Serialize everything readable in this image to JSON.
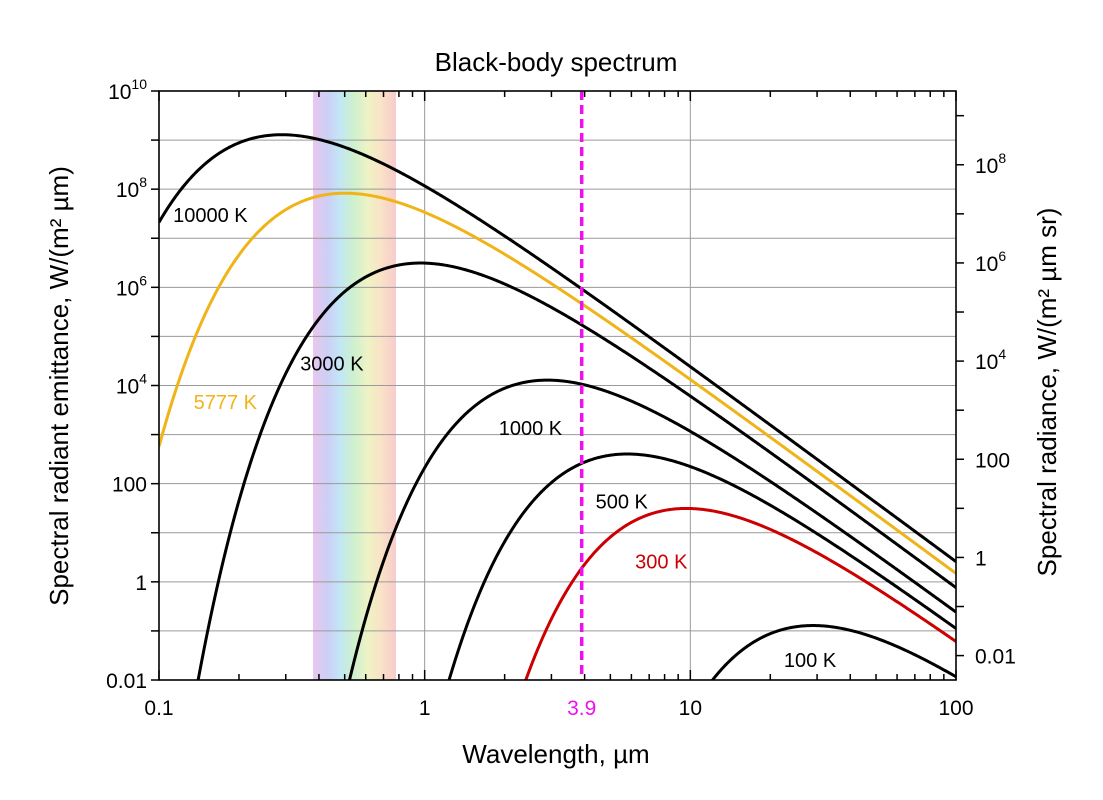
{
  "chart_data": {
    "type": "line",
    "title": "Black-body spectrum",
    "xlabel": "Wavelength, µm",
    "ylabel": "Spectral radiant emittance, W/(m² µm)",
    "y2label": "Spectral radiance, W/(m² µm sr)",
    "x_scale": "log",
    "y_scale": "log",
    "xlim": [
      0.1,
      100
    ],
    "ylim": [
      0.01,
      10000000000
    ],
    "grid": true,
    "legend": "none",
    "x_ticks": [
      {
        "value": 0.1,
        "label": "0.1"
      },
      {
        "value": 1,
        "label": "1"
      },
      {
        "value": 10,
        "label": "10"
      },
      {
        "value": 100,
        "label": "100"
      }
    ],
    "y_ticks": [
      {
        "value": 0.01,
        "label": "0.01"
      },
      {
        "value": 1,
        "label": "1"
      },
      {
        "value": 100,
        "label": "100"
      },
      {
        "value": 10000,
        "base": "10",
        "exp": "4"
      },
      {
        "value": 1000000,
        "base": "10",
        "exp": "6"
      },
      {
        "value": 100000000,
        "base": "10",
        "exp": "8"
      },
      {
        "value": 10000000000,
        "base": "10",
        "exp": "10"
      }
    ],
    "y2_ticks": [
      {
        "value": 0.01,
        "label": "0.01"
      },
      {
        "value": 1,
        "label": "1"
      },
      {
        "value": 100,
        "label": "100"
      },
      {
        "value": 10000,
        "base": "10",
        "exp": "4"
      },
      {
        "value": 1000000,
        "base": "10",
        "exp": "6"
      },
      {
        "value": 100000000,
        "base": "10",
        "exp": "8"
      }
    ],
    "y2_factor": 0.3183,
    "series": [
      {
        "name": "10000 K",
        "temperature": 10000,
        "color": "#000000"
      },
      {
        "name": "5777 K",
        "temperature": 5777,
        "color": "#f0b419"
      },
      {
        "name": "3000 K",
        "temperature": 3000,
        "color": "#000000"
      },
      {
        "name": "1000 K",
        "temperature": 1000,
        "color": "#000000"
      },
      {
        "name": "500 K",
        "temperature": 500,
        "color": "#000000"
      },
      {
        "name": "300 K",
        "temperature": 300,
        "color": "#cc0000"
      },
      {
        "name": "100 K",
        "temperature": 100,
        "color": "#000000"
      }
    ],
    "vertical_marker": {
      "x": 3.9,
      "label": "3.9",
      "color": "#ee11ee"
    },
    "visible_band": {
      "x_start": 0.38,
      "x_end": 0.78
    }
  }
}
